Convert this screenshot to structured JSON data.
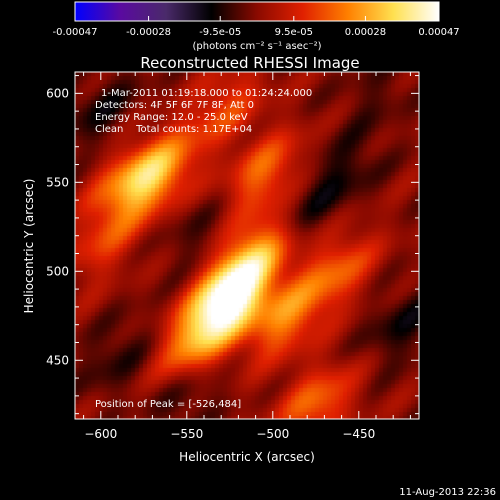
{
  "chart_data": {
    "type": "heatmap",
    "title": "Reconstructed RHESSI Image",
    "xlabel": "Heliocentric X (arcsec)",
    "ylabel": "Heliocentric Y (arcsec)",
    "xlim": [
      -615,
      -415
    ],
    "ylim": [
      417,
      612
    ],
    "xticks": [
      -600,
      -550,
      -500,
      -450
    ],
    "yticks": [
      450,
      500,
      550,
      600
    ],
    "colorbar": {
      "ticks": [
        "-0.00047",
        "-0.00028",
        "-9.5e-05",
        "9.5e-05",
        "0.00028",
        "0.00047"
      ],
      "tick_values": [
        -0.00047,
        -0.00028,
        -9.5e-05,
        9.5e-05,
        0.00028,
        0.00047
      ],
      "range": [
        -0.00047,
        0.00047
      ],
      "unit_label": "(photons cm⁻² s⁻¹ asec⁻²)"
    },
    "colormap_stops": [
      "#0000ff",
      "#5a0aa0",
      "#4a2a6a",
      "#000000",
      "#8a0a00",
      "#e02000",
      "#ff8000",
      "#ffe050",
      "#ffffff"
    ],
    "sources": [
      {
        "x": -526,
        "y": 484,
        "amp": 0.00047
      },
      {
        "x": -510,
        "y": 510,
        "amp": 0.00026
      },
      {
        "x": -545,
        "y": 460,
        "amp": 0.00022
      },
      {
        "x": -567,
        "y": 555,
        "amp": 0.00026
      },
      {
        "x": -585,
        "y": 548,
        "amp": 0.00018
      },
      {
        "x": -505,
        "y": 555,
        "amp": 0.0002
      },
      {
        "x": -493,
        "y": 473,
        "amp": 0.00022
      },
      {
        "x": -463,
        "y": 500,
        "amp": 0.00018
      },
      {
        "x": -475,
        "y": 425,
        "amp": 0.0002
      },
      {
        "x": -528,
        "y": 592,
        "amp": 0.00015
      },
      {
        "x": -598,
        "y": 515,
        "amp": 0.00012
      },
      {
        "x": -590,
        "y": 452,
        "amp": -8e-05
      },
      {
        "x": -460,
        "y": 555,
        "amp": -9e-05
      },
      {
        "x": -545,
        "y": 520,
        "amp": -6e-05
      },
      {
        "x": -485,
        "y": 530,
        "amp": -7e-05
      },
      {
        "x": -425,
        "y": 470,
        "amp": -0.0001
      },
      {
        "x": -600,
        "y": 590,
        "amp": -9e-05
      },
      {
        "x": -550,
        "y": 430,
        "amp": -8e-05
      },
      {
        "x": -440,
        "y": 600,
        "amp": -5e-05
      }
    ],
    "peak": {
      "x": -526,
      "y": 484
    }
  },
  "annotations": {
    "time_range": "1-Mar-2011 01:19:18.000 to 01:24:24.000",
    "detectors": "Detectors: 4F 5F 6F 7F 8F, Att 0",
    "energy": "Energy Range: 12.0 - 25.0 keV",
    "clean": "Clean    Total counts: 1.17E+04",
    "peak": "Position of Peak = [-526,484]"
  },
  "footer": {
    "date": "11-Aug-2013 22:36"
  }
}
